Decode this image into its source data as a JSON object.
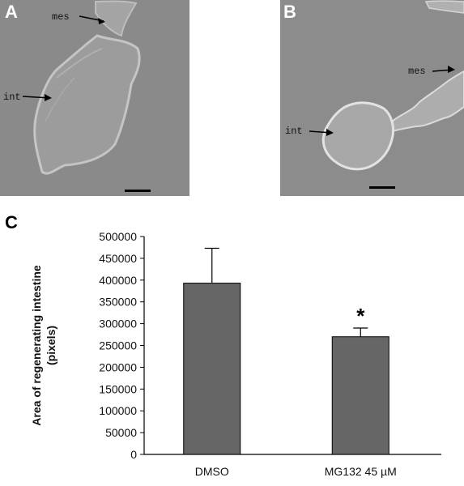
{
  "panels": [
    {
      "letter": "A",
      "labels": {
        "mes": "mes",
        "int": "int"
      }
    },
    {
      "letter": "B",
      "labels": {
        "mes": "mes",
        "int": "int"
      }
    }
  ],
  "panel_c_letter": "C",
  "chart_data": {
    "type": "bar",
    "categories": [
      "DMSO",
      "MG132 45 µM"
    ],
    "values": [
      393000,
      270000
    ],
    "error": [
      80000,
      20000
    ],
    "annotations": [
      {
        "category": "MG132 45 µM",
        "text": "*"
      }
    ],
    "ylabel_line1": "Area of regenerating intestine",
    "ylabel_line2": "(pixels)",
    "ylim": [
      0,
      500000
    ],
    "yticks": [
      0,
      50000,
      100000,
      150000,
      200000,
      250000,
      300000,
      350000,
      400000,
      450000,
      500000
    ],
    "grid": false,
    "bar_color": "#666666"
  }
}
